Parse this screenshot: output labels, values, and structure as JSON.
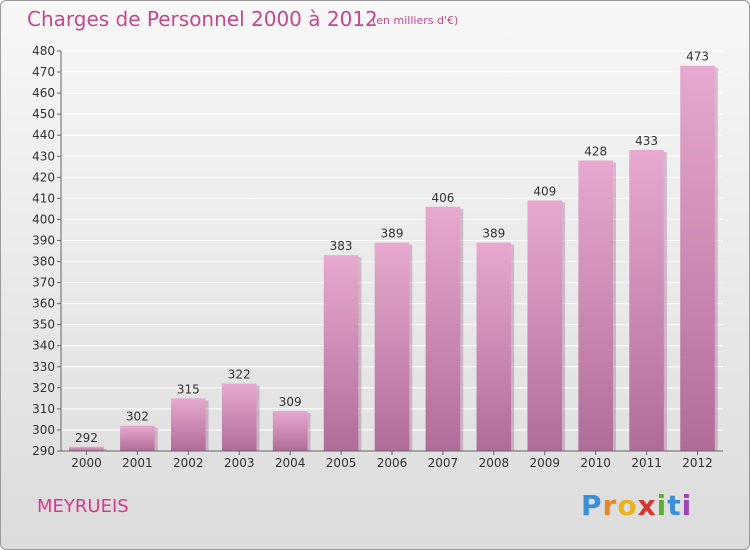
{
  "title": "Charges de Personnel 2000 à 2012",
  "subtitle": "(en milliers d'€)",
  "town": "MEYRUEIS",
  "logo": {
    "text": "Proxiti",
    "letters": [
      "P",
      "r",
      "o",
      "x",
      "i",
      "t",
      "i"
    ]
  },
  "colors": {
    "bar_light": "#e7a9cf",
    "bar_dark": "#b06c98",
    "title": "#c04a8c",
    "grid": "#ffffff"
  },
  "chart_data": {
    "type": "bar",
    "categories": [
      "2000",
      "2001",
      "2002",
      "2003",
      "2004",
      "2005",
      "2006",
      "2007",
      "2008",
      "2009",
      "2010",
      "2011",
      "2012"
    ],
    "values": [
      292,
      302,
      315,
      322,
      309,
      383,
      389,
      406,
      389,
      409,
      428,
      433,
      473
    ],
    "data_labels": [
      "292",
      "302",
      "315",
      "322",
      "309",
      "383",
      "389",
      "406",
      "389",
      "409",
      "428",
      "433",
      "473"
    ],
    "ylim": [
      290,
      480
    ],
    "yticks": [
      "290",
      "300",
      "310",
      "320",
      "330",
      "340",
      "350",
      "360",
      "370",
      "380",
      "390",
      "400",
      "410",
      "420",
      "430",
      "440",
      "450",
      "460",
      "470",
      "480"
    ],
    "grid": true,
    "legend": "none"
  }
}
